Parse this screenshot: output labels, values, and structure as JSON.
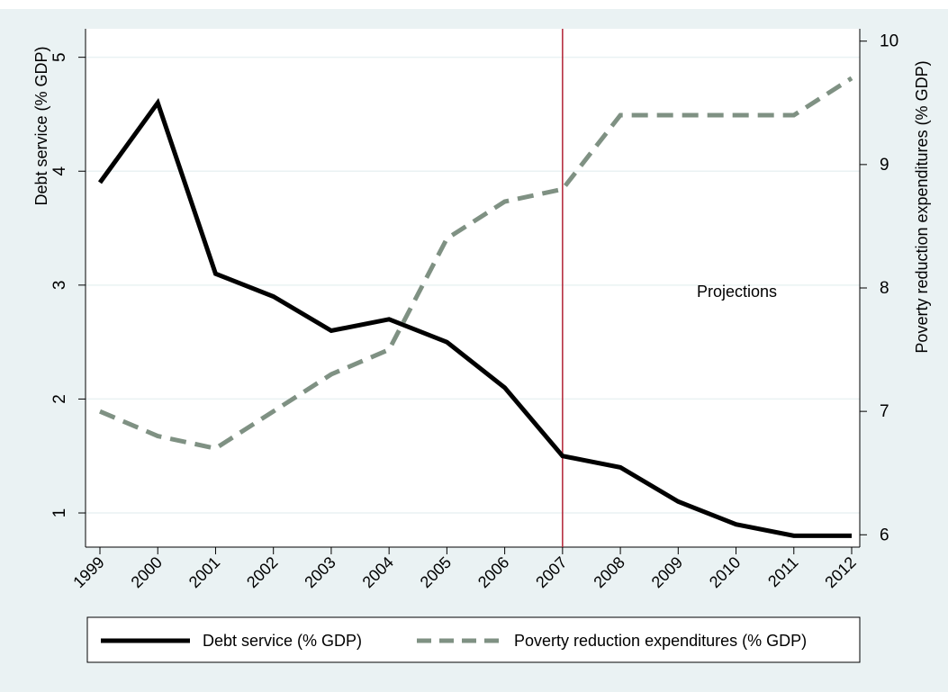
{
  "chart_data": {
    "type": "line",
    "title": "",
    "x": [
      "1999",
      "2000",
      "2001",
      "2002",
      "2003",
      "2004",
      "2005",
      "2006",
      "2007",
      "2008",
      "2009",
      "2010",
      "2011",
      "2012"
    ],
    "xlabel": "",
    "ylabel_left": "Debt service (% GDP)",
    "ylabel_right": "Poverty reduction expenditures (% GDP)",
    "ylim_left": [
      0.7,
      5.25
    ],
    "ylim_right": [
      5.9,
      10.1
    ],
    "yticks_left": [
      "1",
      "2",
      "3",
      "4",
      "5"
    ],
    "yticks_right": [
      "6",
      "7",
      "8",
      "9",
      "10"
    ],
    "grid": "horizontal",
    "legend_position": "bottom",
    "series": [
      {
        "name": "Debt service (% GDP)",
        "axis": "left",
        "style": "solid",
        "color": "#000000",
        "values": [
          3.9,
          4.6,
          3.1,
          2.9,
          2.6,
          2.7,
          2.5,
          2.1,
          1.5,
          1.4,
          1.1,
          0.9,
          0.8,
          0.8
        ]
      },
      {
        "name": "Poverty reduction expenditures (% GDP)",
        "axis": "right",
        "style": "dashed",
        "color": "#7f9183",
        "values": [
          7.0,
          6.8,
          6.7,
          7.0,
          7.3,
          7.5,
          8.4,
          8.7,
          8.8,
          9.4,
          9.4,
          9.4,
          9.4,
          9.7
        ]
      }
    ],
    "annotations": [
      {
        "type": "vline",
        "x": "2007",
        "color": "#b22234"
      },
      {
        "type": "text",
        "text": "Projections",
        "x": "2008.4",
        "y_right": 8
      }
    ]
  },
  "colors": {
    "outer_background": "#eaf2f3",
    "plot_background": "#ffffff",
    "grid": "#eaf2f3",
    "vline": "#b22234"
  }
}
